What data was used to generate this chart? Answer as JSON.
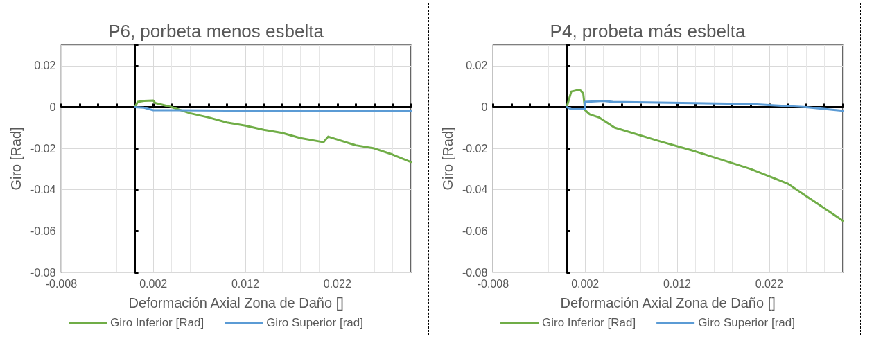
{
  "chart_data": [
    {
      "type": "line",
      "title": "P6, porbeta menos esbelta",
      "xlabel": "Deformación Axial Zona de Daño []",
      "ylabel": "Giro [Rad]",
      "xlim": [
        -0.008,
        0.03
      ],
      "xticks": [
        -0.008,
        0.002,
        0.012,
        0.022
      ],
      "ylim": [
        -0.08,
        0.03
      ],
      "yticks": [
        -0.08,
        -0.06,
        -0.04,
        -0.02,
        0,
        0.02
      ],
      "grid": true,
      "legend": "bottom",
      "marker": "none",
      "line_style": "solid",
      "series": [
        {
          "name": "Giro Inferior [Rad]",
          "color": "#70ad47",
          "x": [
            0,
            0.0003,
            0.001,
            0.002,
            0.0022,
            0.004,
            0.006,
            0.008,
            0.01,
            0.012,
            0.014,
            0.016,
            0.018,
            0.0205,
            0.021,
            0.024,
            0.026,
            0.028,
            0.03
          ],
          "values": [
            0,
            0.0025,
            0.003,
            0.0032,
            0.002,
            0,
            -0.003,
            -0.005,
            -0.0075,
            -0.009,
            -0.011,
            -0.0125,
            -0.015,
            -0.017,
            -0.0143,
            -0.0185,
            -0.02,
            -0.023,
            -0.0266
          ]
        },
        {
          "name": "Giro Superior [rad]",
          "color": "#5b9bd5",
          "x": [
            0,
            0.001,
            0.002,
            0.01,
            0.03
          ],
          "values": [
            0,
            -0.0003,
            -0.0015,
            -0.0017,
            -0.0018
          ]
        }
      ]
    },
    {
      "type": "line",
      "title": "P4, probeta más esbelta",
      "xlabel": "Deformación Axial Zona de Daño []",
      "ylabel": "Giro [Rad]",
      "xlim": [
        -0.008,
        0.03
      ],
      "xticks": [
        -0.008,
        0.002,
        0.012,
        0.022
      ],
      "ylim": [
        -0.08,
        0.03
      ],
      "yticks": [
        -0.08,
        -0.06,
        -0.04,
        -0.02,
        0,
        0.02
      ],
      "grid": true,
      "legend": "bottom",
      "marker": "none",
      "line_style": "solid",
      "series": [
        {
          "name": "Giro Inferior [Rad]",
          "color": "#70ad47",
          "x": [
            0,
            0.0005,
            0.001,
            0.0015,
            0.0018,
            0.002,
            0.0025,
            0.0035,
            0.0052,
            0.01,
            0.014,
            0.02,
            0.024,
            0.026,
            0.028,
            0.03
          ],
          "values": [
            0,
            0.0075,
            0.008,
            0.008,
            0.0065,
            -0.0015,
            -0.0035,
            -0.005,
            -0.0099,
            -0.0164,
            -0.0215,
            -0.03,
            -0.037,
            -0.043,
            -0.049,
            -0.055
          ]
        },
        {
          "name": "Giro Superior [rad]",
          "color": "#5b9bd5",
          "x": [
            0,
            0.0005,
            0.002,
            0.002,
            0.004,
            0.005,
            0.01,
            0.02,
            0.026,
            0.03
          ],
          "values": [
            0,
            -0.001,
            -0.001,
            0.0025,
            0.003,
            0.0025,
            0.0022,
            0.0015,
            0,
            -0.0018
          ]
        }
      ]
    }
  ]
}
